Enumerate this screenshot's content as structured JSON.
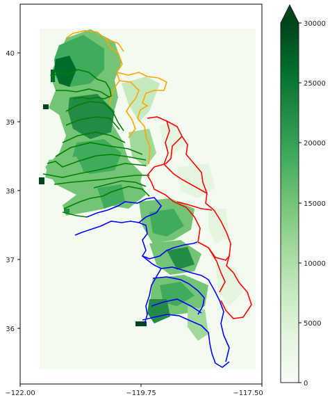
{
  "map": {
    "x_ticks": [
      "−122.00",
      "−119.75",
      "−117.50"
    ],
    "y_ticks": [
      "36",
      "37",
      "38",
      "39",
      "40"
    ],
    "extent": {
      "lon": [
        -122.0,
        -117.5
      ],
      "lat": [
        35.2,
        40.7
      ]
    }
  },
  "colorbar": {
    "ticks": [
      "0",
      "5000",
      "10000",
      "15000",
      "20000",
      "25000",
      "30000"
    ],
    "range": [
      0,
      30000
    ],
    "colormap": "Greens",
    "extend": "max"
  },
  "basin_colors": {
    "north": "#ffa500",
    "central": "#008000",
    "east": "#ff0000",
    "south": "#0000ff"
  }
}
